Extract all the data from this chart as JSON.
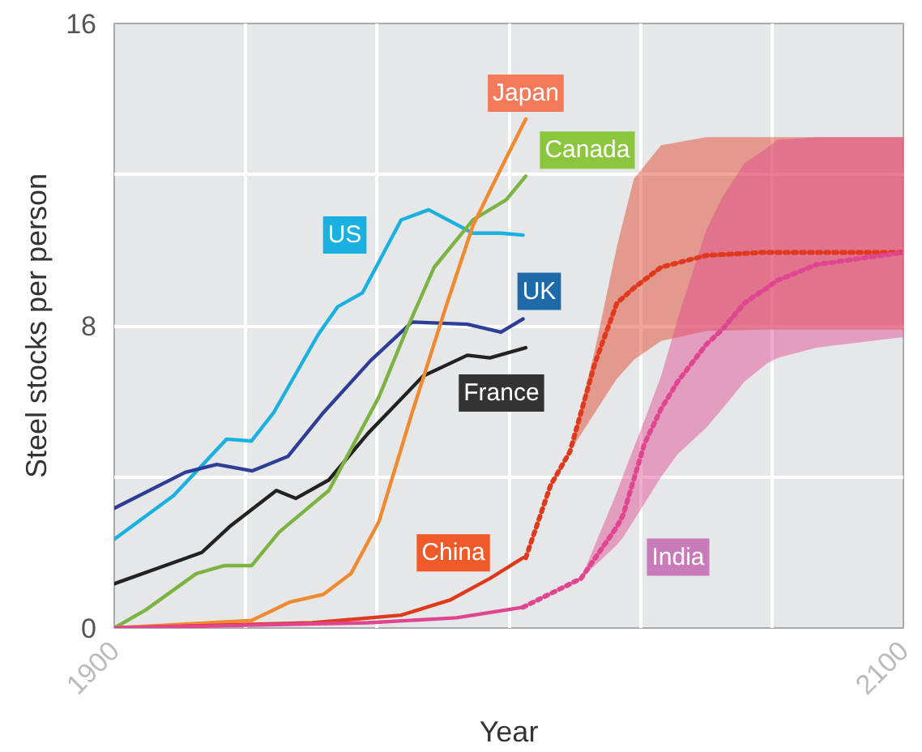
{
  "chart_data": {
    "type": "line",
    "xlabel": "Year",
    "ylabel": "Steel stocks per person",
    "xlim": [
      1900,
      2100
    ],
    "ylim": [
      0,
      16
    ],
    "xticks": [
      1900,
      {
        "value": 1933.33,
        "label": null
      },
      {
        "value": 1966.67,
        "label": null
      },
      {
        "value": 2000,
        "label": null
      },
      {
        "value": 2033.33,
        "label": null
      },
      {
        "value": 2066.67,
        "label": null
      },
      2100
    ],
    "yticks": [
      0,
      {
        "value": 4,
        "label": null
      },
      8,
      {
        "value": 12,
        "label": null
      },
      16
    ],
    "grid": true,
    "series": [
      {
        "name": "US",
        "color": "#1ab0e0",
        "x": [
          1900,
          1915,
          1928.5,
          1934.8,
          1940.4,
          1951.7,
          1956.6,
          1962.9,
          1972.7,
          1979.7,
          1990.9,
          1998,
          2003.6
        ],
        "values": [
          2.35,
          3.5,
          5.0,
          4.95,
          5.7,
          7.77,
          8.5,
          8.87,
          10.8,
          11.07,
          10.45,
          10.45,
          10.4
        ]
      },
      {
        "name": "UK",
        "color": "#2e3d96",
        "x": [
          1900,
          1918,
          1926,
          1935,
          1944,
          1953,
          1965,
          1975.5,
          1989.5,
          1998,
          2003.6
        ],
        "values": [
          3.17,
          4.12,
          4.33,
          4.16,
          4.54,
          5.7,
          7.08,
          8.1,
          8.04,
          7.83,
          8.18
        ]
      },
      {
        "name": "France",
        "color": "#222222",
        "x": [
          1900,
          1922.2,
          1929.2,
          1941.1,
          1946,
          1954.4,
          1964.3,
          1978.3,
          1989.5,
          1995.2,
          2004.3
        ],
        "values": [
          1.17,
          2.0,
          2.68,
          3.64,
          3.43,
          3.92,
          5.15,
          6.67,
          7.22,
          7.15,
          7.42
        ]
      },
      {
        "name": "Canada",
        "color": "#7cb342",
        "x": [
          1900,
          1908,
          1920.8,
          1927.8,
          1934.8,
          1941.8,
          1954.4,
          1967.1,
          1974.1,
          1981.1,
          1990.9,
          1999.4,
          2004.3
        ],
        "values": [
          0,
          0.48,
          1.44,
          1.65,
          1.65,
          2.54,
          3.64,
          6.12,
          7.9,
          9.55,
          10.8,
          11.34,
          11.96
        ]
      },
      {
        "name": "Japan",
        "color": "#f08a30",
        "x": [
          1900,
          1934.8,
          1944.6,
          1953,
          1960,
          1967.1,
          1975.5,
          1983.9,
          1990.9,
          1998,
          2004.3
        ],
        "values": [
          0,
          0.2,
          0.69,
          0.89,
          1.44,
          2.82,
          5.7,
          8.45,
          10.65,
          12.16,
          13.47
        ]
      },
      {
        "name": "China",
        "color": "#e03a1e",
        "x": [
          1900,
          1950.2,
          1972.7,
          1985.3,
          1995.2,
          2003.6
        ],
        "values": [
          0,
          0.14,
          0.34,
          0.75,
          1.31,
          1.86
        ]
      },
      {
        "color": "#e03a1e",
        "line_style": "dotted",
        "x": [
          2004.3,
          2010.6,
          2015.5,
          2021.8,
          2027.4,
          2031.7,
          2038.6,
          2050,
          2064,
          2100
        ],
        "values": [
          1.86,
          3.78,
          4.67,
          7.0,
          8.6,
          9.0,
          9.55,
          9.86,
          9.94,
          9.94
        ],
        "lower": [
          null,
          null,
          4.67,
          5.7,
          6.6,
          7.1,
          7.6,
          7.86,
          7.9,
          7.9
        ],
        "upper": [
          null,
          null,
          4.67,
          7.35,
          10.1,
          11.89,
          12.78,
          12.99,
          12.99,
          12.99
        ]
      },
      {
        "color": "#e0458f",
        "x": [
          1900,
          1964.3,
          1986.7,
          2003.6
        ],
        "values": [
          0,
          0.14,
          0.27,
          0.55
        ]
      },
      {
        "name": "India",
        "color": "#e0458f",
        "line_style": "dotted",
        "x": [
          2003.6,
          2018.3,
          2027.4,
          2029,
          2034.4,
          2038.6,
          2042.8,
          2050,
          2054.1,
          2059.7,
          2065.4,
          2068.1,
          2078,
          2100
        ],
        "values": [
          0.55,
          1.31,
          2.68,
          3.0,
          4.88,
          5.8,
          6.52,
          7.5,
          7.9,
          8.6,
          9.0,
          9.2,
          9.62,
          9.94
        ],
        "lower": [
          null,
          1.31,
          2.2,
          2.4,
          3.3,
          4.0,
          4.6,
          5.3,
          5.8,
          6.52,
          7.0,
          7.15,
          7.42,
          7.7
        ],
        "upper": [
          null,
          1.31,
          3.6,
          4.05,
          5.5,
          6.67,
          8.18,
          10.52,
          11.4,
          12.3,
          12.7,
          12.92,
          12.99,
          12.99
        ]
      }
    ]
  }
}
